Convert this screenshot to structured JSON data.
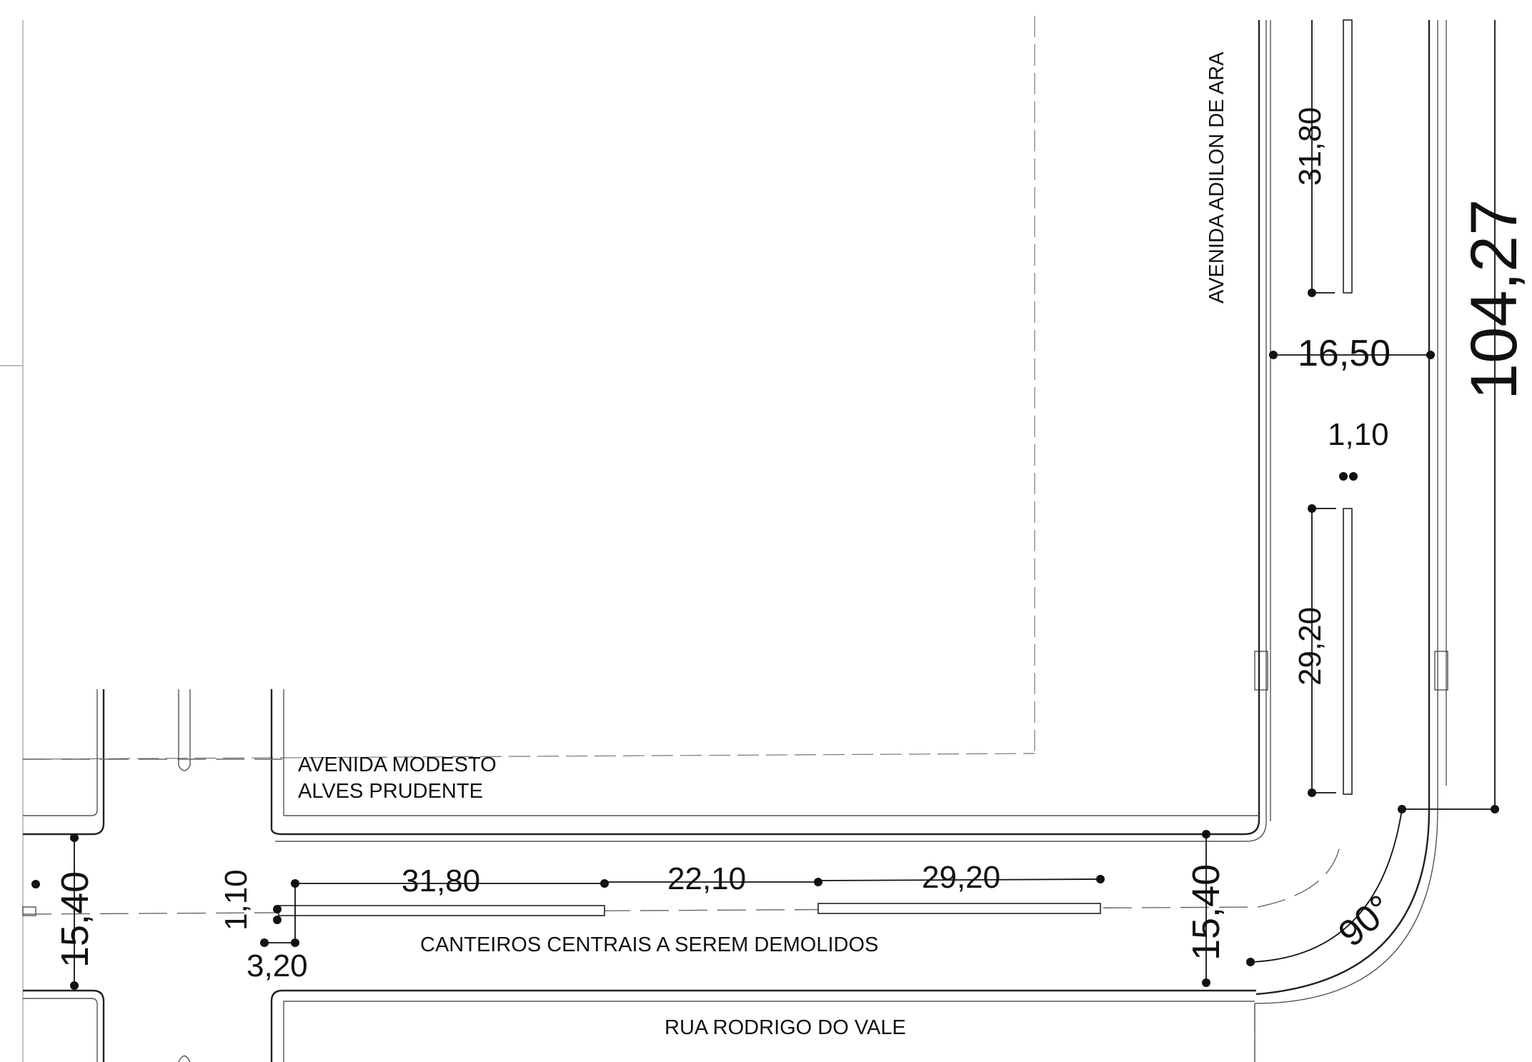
{
  "streets": {
    "modesto_line1": "AVENIDA MODESTO",
    "modesto_line2": "ALVES PRUDENTE",
    "adilon": "AVENIDA ADILON DE ARA",
    "rodrigo": "RUA RODRIGO DO VALE"
  },
  "notes": {
    "medians": "CANTEIROS CENTRAIS A SEREM DEMOLIDOS"
  },
  "dimensions": {
    "horiz_median_1": "31,80",
    "horiz_gap": "22,10",
    "horiz_median_2": "29,20",
    "median_width_h": "1,10",
    "median_offset": "3,20",
    "road_width_left": "15,40",
    "road_width_right": "15,40",
    "vert_median_1": "31,80",
    "vert_road_width": "16,50",
    "median_width_v": "1,10",
    "vert_median_2": "29,20",
    "total_length": "104,27",
    "angle": "90°"
  },
  "colors": {
    "line": "#222222",
    "background": "#ffffff"
  }
}
